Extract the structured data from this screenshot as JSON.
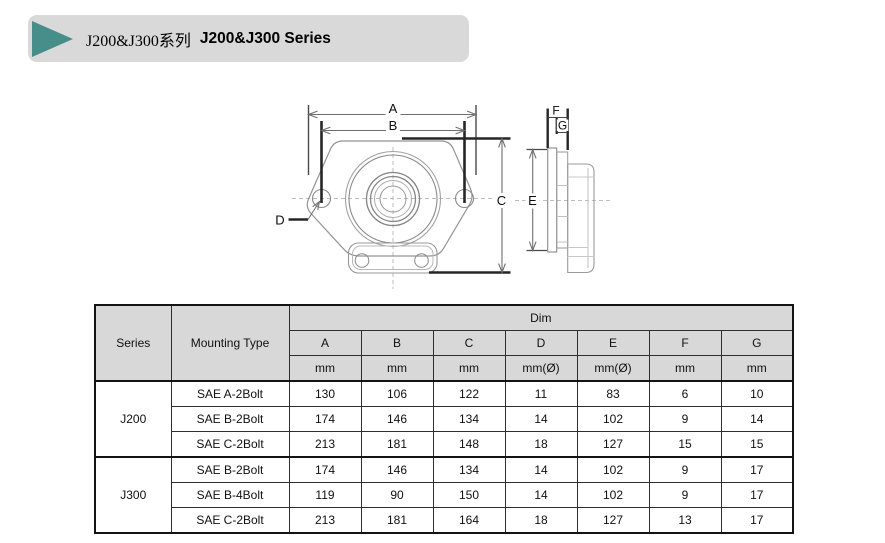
{
  "header": {
    "title_cn": "J200&J300系列",
    "title_en": "J200&J300 Series",
    "accent_color": "#478E8B",
    "bar_color": "#D9D9D9"
  },
  "drawing": {
    "labels": {
      "A": "A",
      "B": "B",
      "C": "C",
      "D": "D",
      "E": "E",
      "F": "F",
      "G": "G"
    }
  },
  "table": {
    "headers": {
      "series": "Series",
      "mounting": "Mounting Type",
      "dim": "Dim"
    },
    "dim_letters": [
      "A",
      "B",
      "C",
      "D",
      "E",
      "F",
      "G"
    ],
    "units": [
      "mm",
      "mm",
      "mm",
      "mm(Ø)",
      "mm(Ø)",
      "mm",
      "mm"
    ],
    "groups": [
      {
        "series": "J200",
        "rows": [
          {
            "mounting": "SAE A-2Bolt",
            "values": [
              "130",
              "106",
              "122",
              "11",
              "83",
              "6",
              "10"
            ]
          },
          {
            "mounting": "SAE B-2Bolt",
            "values": [
              "174",
              "146",
              "134",
              "14",
              "102",
              "9",
              "14"
            ]
          },
          {
            "mounting": "SAE C-2Bolt",
            "values": [
              "213",
              "181",
              "148",
              "18",
              "127",
              "15",
              "15"
            ]
          }
        ]
      },
      {
        "series": "J300",
        "rows": [
          {
            "mounting": "SAE B-2Bolt",
            "values": [
              "174",
              "146",
              "134",
              "14",
              "102",
              "9",
              "17"
            ]
          },
          {
            "mounting": "SAE B-4Bolt",
            "values": [
              "119",
              "90",
              "150",
              "14",
              "102",
              "9",
              "17"
            ]
          },
          {
            "mounting": "SAE C-2Bolt",
            "values": [
              "213",
              "181",
              "164",
              "18",
              "127",
              "13",
              "17"
            ]
          }
        ]
      }
    ]
  }
}
